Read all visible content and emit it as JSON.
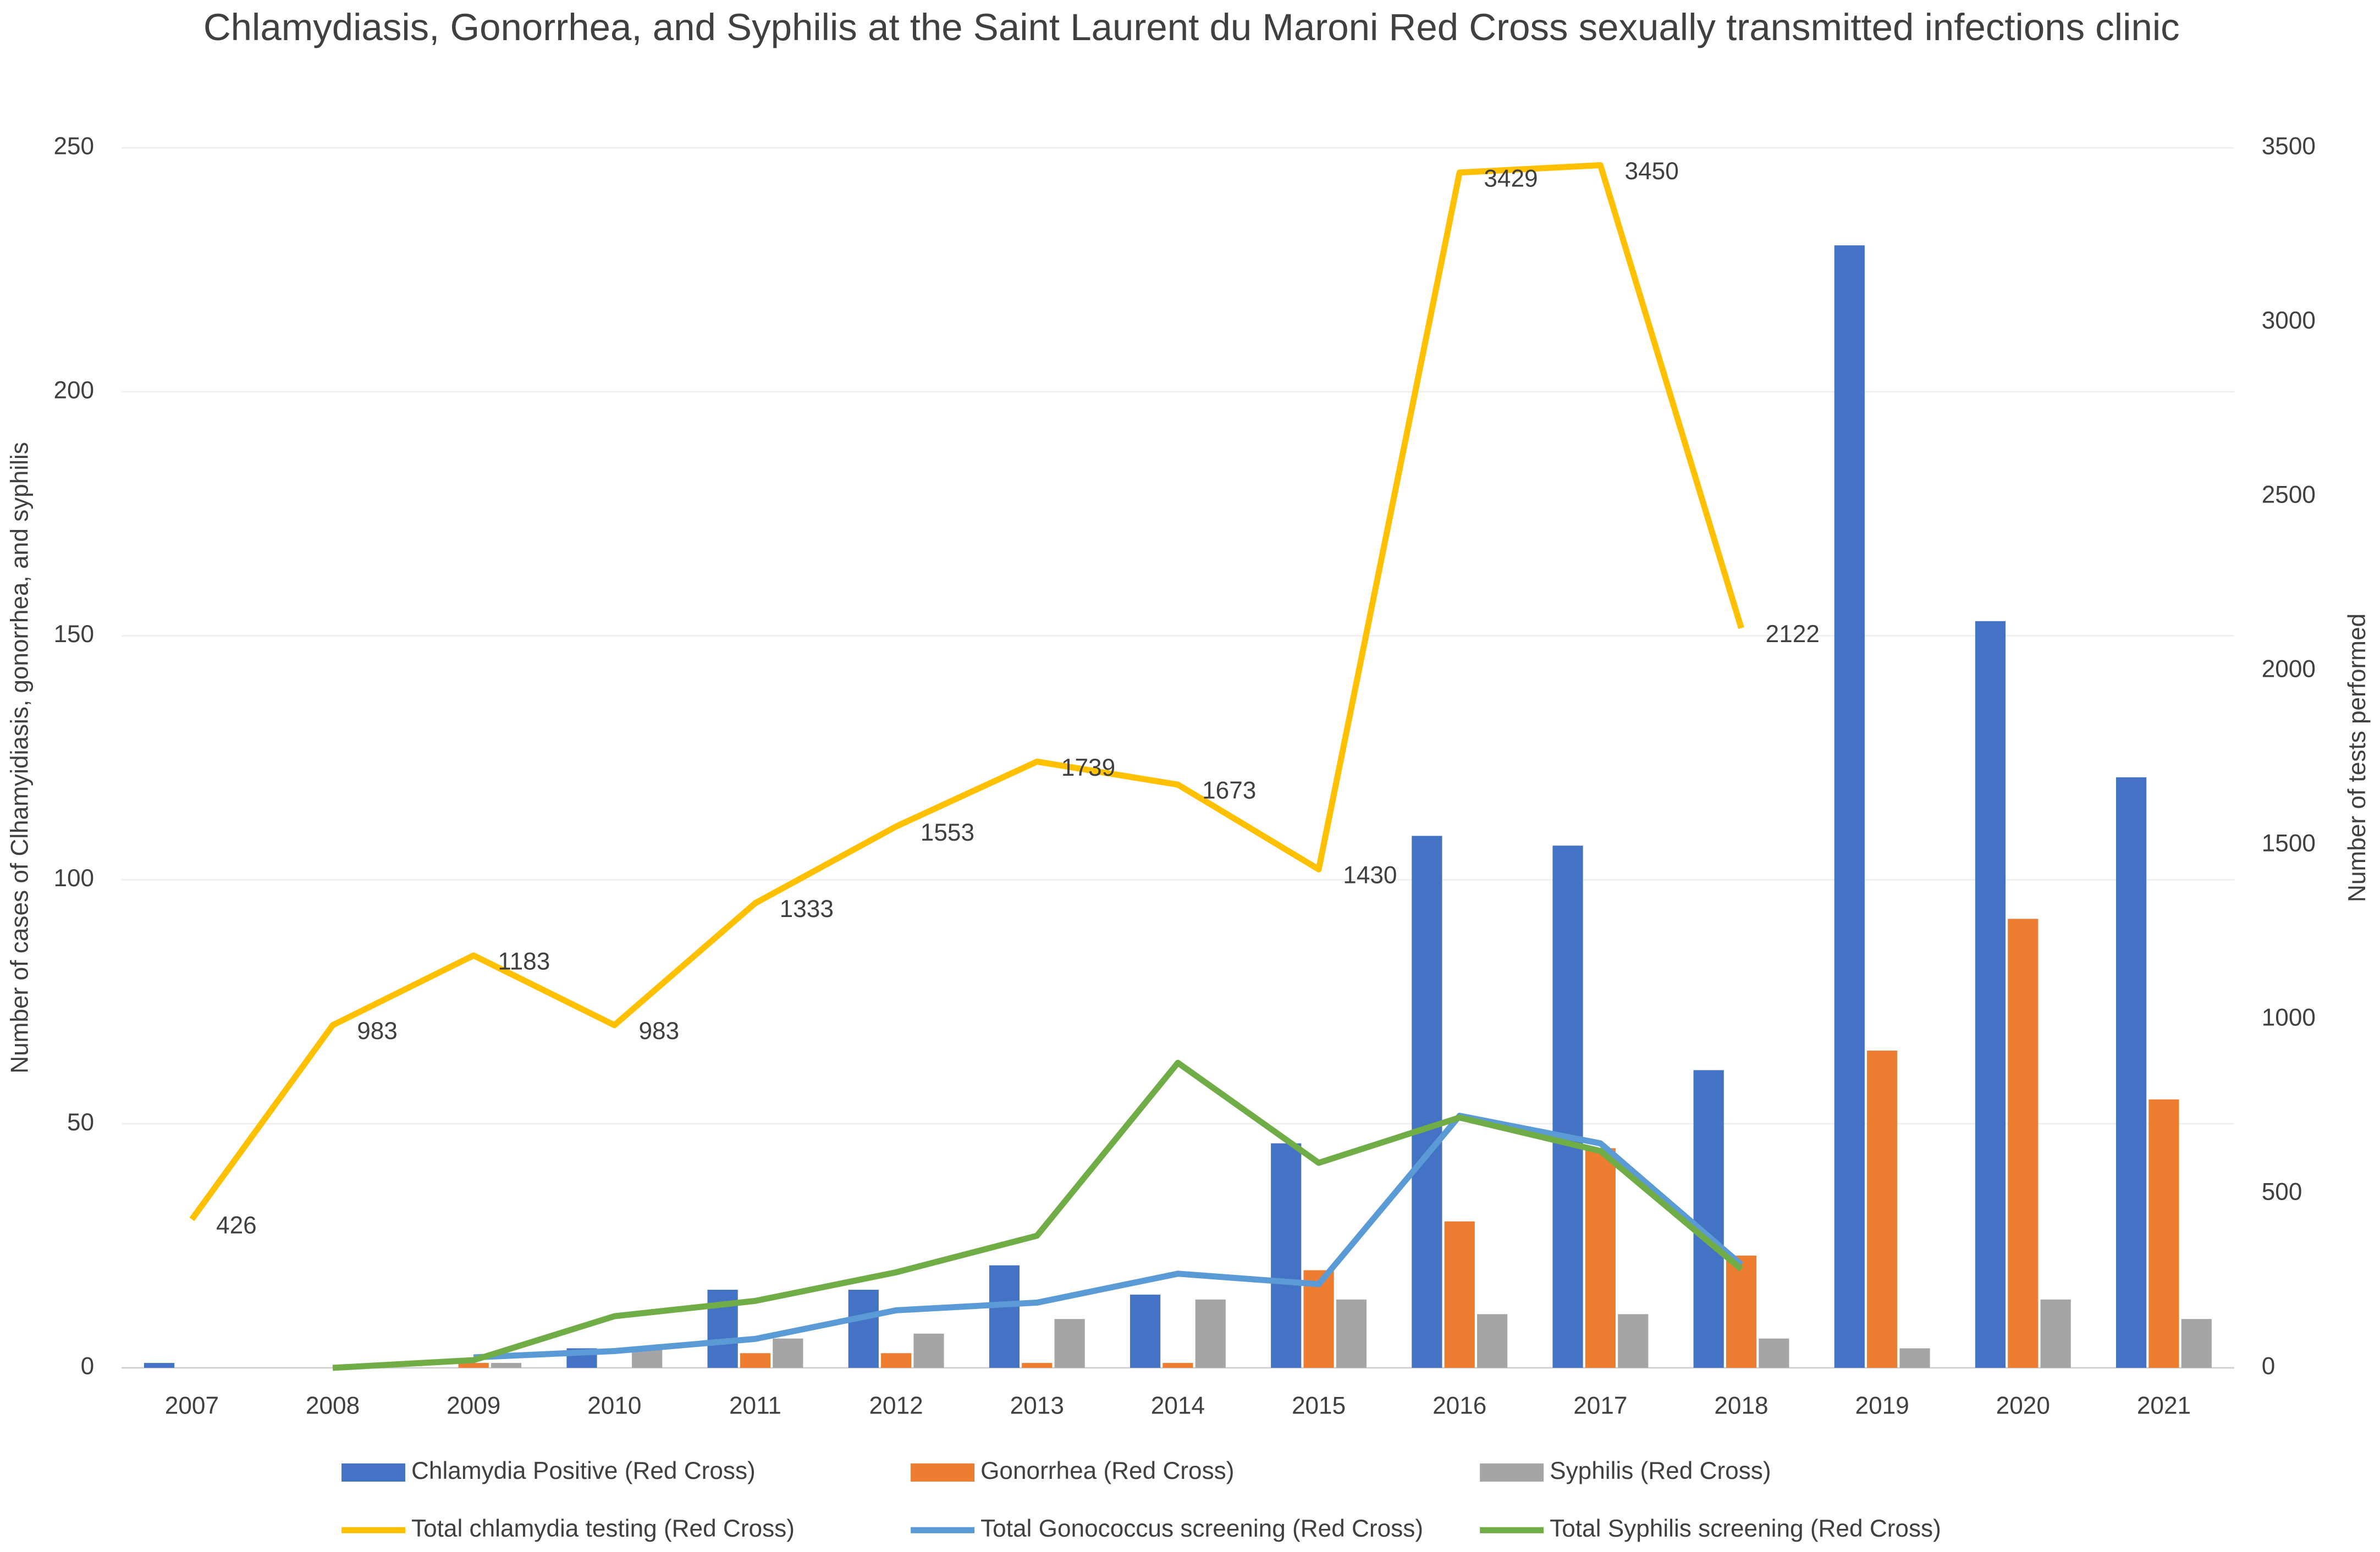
{
  "chart_data": {
    "type": "bar",
    "title": "Chlamydiasis, Gonorrhea, and Syphilis at the Saint Laurent du Maroni Red Cross sexually transmitted infections clinic",
    "ylabel": "Number of cases of Clhamyidiasis, gonorrhea, and syphilis",
    "y2label": "Number of tests performed",
    "categories": [
      "2007",
      "2008",
      "2009",
      "2010",
      "2011",
      "2012",
      "2013",
      "2014",
      "2015",
      "2016",
      "2017",
      "2018",
      "2019",
      "2020",
      "2021"
    ],
    "series": [
      {
        "name": "Chlamydia Positive (Red Cross)",
        "type": "bar",
        "color": "#4472c4",
        "values": [
          1,
          0,
          0,
          4,
          16,
          16,
          21,
          15,
          46,
          109,
          107,
          61,
          230,
          153,
          121
        ]
      },
      {
        "name": "Gonorrhea (Red Cross)",
        "type": "bar",
        "color": "#ed7d31",
        "values": [
          0,
          0,
          1,
          0,
          3,
          3,
          1,
          1,
          20,
          30,
          45,
          23,
          65,
          92,
          55
        ]
      },
      {
        "name": "Syphilis (Red Cross)",
        "type": "bar",
        "color": "#a5a5a5",
        "values": [
          0,
          0,
          1,
          4,
          6,
          7,
          10,
          14,
          14,
          11,
          11,
          6,
          4,
          14,
          10
        ]
      },
      {
        "name": "Total chlamydia testing (Red Cross)",
        "type": "line",
        "axis": "y2",
        "color": "#ffc000",
        "data_labels": true,
        "values": [
          426,
          983,
          1183,
          983,
          1333,
          1553,
          1739,
          1673,
          1430,
          3429,
          3450,
          2122,
          null,
          null,
          null
        ]
      },
      {
        "name": "Total Gonococcus screening (Red Cross)",
        "type": "line",
        "axis": "y2",
        "color": "#5b9bd5",
        "values": [
          null,
          null,
          30,
          48,
          83,
          165,
          187,
          270,
          240,
          723,
          644,
          296,
          null,
          null,
          null
        ]
      },
      {
        "name": "Total Syphilis screening (Red Cross)",
        "type": "line",
        "axis": "y2",
        "color": "#70ad47",
        "values": [
          null,
          0,
          22,
          148,
          192,
          274,
          379,
          875,
          588,
          718,
          622,
          283,
          null,
          null,
          null
        ]
      }
    ],
    "ylim": [
      0,
      250
    ],
    "yticks": [
      0,
      50,
      100,
      150,
      200,
      250
    ],
    "y2lim": [
      0,
      3500
    ],
    "y2ticks": [
      0,
      500,
      1000,
      1500,
      2000,
      2500,
      3000,
      3500
    ],
    "grid": true,
    "legend": "bottom"
  }
}
